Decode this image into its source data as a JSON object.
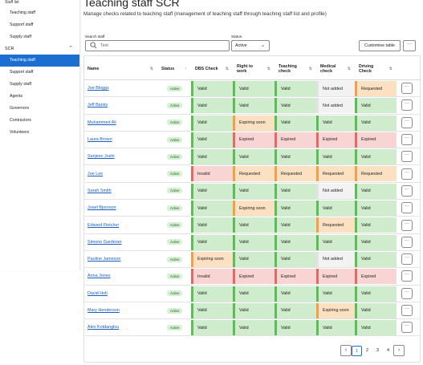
{
  "sidebar": {
    "top_partial": "Staff list",
    "group1": [
      "Teaching staff",
      "Support staff",
      "Supply staff"
    ],
    "section": "SCR",
    "group2": [
      "Teaching staff",
      "Support staff",
      "Supply staff",
      "Agents",
      "Governors",
      "Contractors",
      "Volunteers"
    ]
  },
  "header": {
    "title": "Teaching staff SCR",
    "subtitle": "Manage checks related to teaching staff (management of teaching staff through teaching staff list and profile)"
  },
  "filters": {
    "search_label": "Search staff",
    "search_placeholder": "Text",
    "status_label": "Status",
    "status_value": "Active",
    "customise_label": "Customise table",
    "more_label": "···"
  },
  "table": {
    "columns": [
      "Name",
      "Status",
      "DBS Check",
      "Right to work",
      "Teaching check",
      "Medical check",
      "Driving Check"
    ],
    "rows": [
      {
        "name": "Joe Bloggs",
        "status": "Active",
        "dbs": "Valid",
        "rtw": "Valid",
        "teach": "Valid",
        "med": "Not added",
        "drv": "Requested"
      },
      {
        "name": "Jeff Banks",
        "status": "Active",
        "dbs": "Valid",
        "rtw": "Valid",
        "teach": "Valid",
        "med": "Not added",
        "drv": "Valid"
      },
      {
        "name": "Muhammed Ali",
        "status": "Active",
        "dbs": "Valid",
        "rtw": "Expiring soon",
        "teach": "Valid",
        "med": "Valid",
        "drv": "Valid"
      },
      {
        "name": "Laura Brown",
        "status": "Active",
        "dbs": "Valid",
        "rtw": "Expired",
        "teach": "Expired",
        "med": "Expired",
        "drv": "Expired"
      },
      {
        "name": "Sanjeev Joshi",
        "status": "Active",
        "dbs": "Valid",
        "rtw": "Valid",
        "teach": "Valid",
        "med": "Valid",
        "drv": "Valid"
      },
      {
        "name": "Joe Lee",
        "status": "Active",
        "dbs": "Invalid",
        "rtw": "Requested",
        "teach": "Requested",
        "med": "Requested",
        "drv": "Requested"
      },
      {
        "name": "Sarah Smith",
        "status": "Active",
        "dbs": "Valid",
        "rtw": "Valid",
        "teach": "Valid",
        "med": "Not added",
        "drv": "Valid"
      },
      {
        "name": "Josef Bjornson",
        "status": "Active",
        "dbs": "Valid",
        "rtw": "Expiring soon",
        "teach": "Valid",
        "med": "Valid",
        "drv": "Valid"
      },
      {
        "name": "Edward Fletcher",
        "status": "Active",
        "dbs": "Valid",
        "rtw": "Valid",
        "teach": "Valid",
        "med": "Requested",
        "drv": "Valid"
      },
      {
        "name": "Simone Gardener",
        "status": "Active",
        "dbs": "Valid",
        "rtw": "Valid",
        "teach": "Valid",
        "med": "Valid",
        "drv": "Valid"
      },
      {
        "name": "Pauline Jameson",
        "status": "Active",
        "dbs": "Expiring soon",
        "rtw": "Valid",
        "teach": "Valid",
        "med": "Not added",
        "drv": "Valid"
      },
      {
        "name": "Anna Jones",
        "status": "Active",
        "dbs": "Invalid",
        "rtw": "Expired",
        "teach": "Expired",
        "med": "Expired",
        "drv": "Expired"
      },
      {
        "name": "David Holt",
        "status": "Active",
        "dbs": "Valid",
        "rtw": "Valid",
        "teach": "Valid",
        "med": "Valid",
        "drv": "Valid"
      },
      {
        "name": "Mary Henderson",
        "status": "Active",
        "dbs": "Valid",
        "rtw": "Valid",
        "teach": "Valid",
        "med": "Expiring soon",
        "drv": "Valid"
      },
      {
        "name": "Alex Kotdanglou",
        "status": "Active",
        "dbs": "Valid",
        "rtw": "Valid",
        "teach": "Valid",
        "med": "Valid",
        "drv": "Valid"
      }
    ]
  },
  "pagination": {
    "pages": [
      "1",
      "2",
      "3",
      "4"
    ],
    "current": "1"
  },
  "colors": {
    "accent": "#1c6fd1",
    "valid": "#cfeccc",
    "expired": "#f8d4d2",
    "warning": "#fbe0c2",
    "none": "#f2f2f2"
  }
}
